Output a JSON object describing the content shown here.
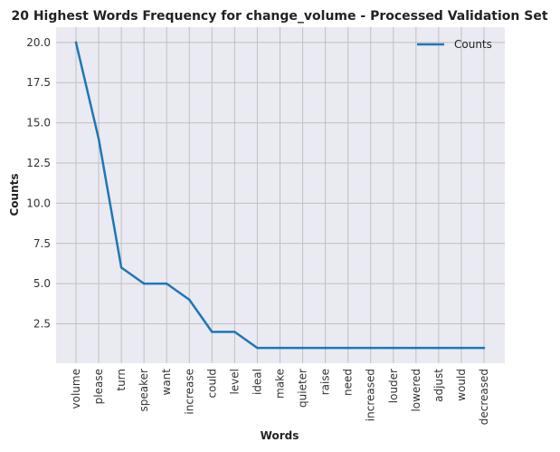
{
  "chart_data": {
    "type": "line",
    "title": "20 Highest Words Frequency for change_volume - Processed Validation Set",
    "xlabel": "Words",
    "ylabel": "Counts",
    "categories": [
      "volume",
      "please",
      "turn",
      "speaker",
      "want",
      "increase",
      "could",
      "level",
      "ideal",
      "make",
      "quieter",
      "raise",
      "need",
      "increased",
      "louder",
      "lowered",
      "adjust",
      "would",
      "decreased"
    ],
    "series": [
      {
        "name": "Counts",
        "values": [
          20,
          14,
          6,
          5,
          5,
          4,
          2,
          2,
          1,
          1,
          1,
          1,
          1,
          1,
          1,
          1,
          1,
          1,
          1
        ]
      }
    ],
    "yticks": [
      2.5,
      5.0,
      7.5,
      10.0,
      12.5,
      15.0,
      17.5,
      20.0
    ],
    "ylim": [
      0.05,
      20.95
    ],
    "grid": true,
    "legend_position": "top-right",
    "colors": {
      "line": "#1f77b4",
      "plot_background": "#eaeaf2",
      "grid": "#c0c0c0"
    }
  }
}
